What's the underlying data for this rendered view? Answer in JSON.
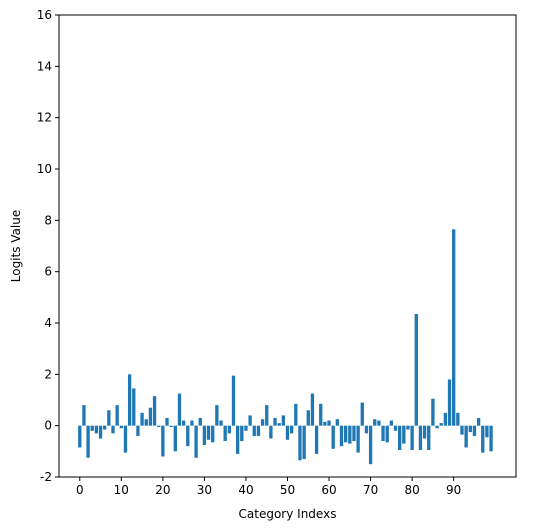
{
  "chart_data": {
    "type": "bar",
    "title": "",
    "xlabel": "Category Indexs",
    "ylabel": "Logits Value",
    "xlim": [
      -5,
      105
    ],
    "ylim": [
      -2,
      16
    ],
    "x_ticks": [
      0,
      10,
      20,
      30,
      40,
      50,
      60,
      70,
      80,
      90
    ],
    "y_ticks": [
      -2,
      0,
      2,
      4,
      6,
      8,
      10,
      12,
      14,
      16
    ],
    "grid": false,
    "bar_color": "#1f77b4",
    "x": [
      0,
      1,
      2,
      3,
      4,
      5,
      6,
      7,
      8,
      9,
      10,
      11,
      12,
      13,
      14,
      15,
      16,
      17,
      18,
      19,
      20,
      21,
      22,
      23,
      24,
      25,
      26,
      27,
      28,
      29,
      30,
      31,
      32,
      33,
      34,
      35,
      36,
      37,
      38,
      39,
      40,
      41,
      42,
      43,
      44,
      45,
      46,
      47,
      48,
      49,
      50,
      51,
      52,
      53,
      54,
      55,
      56,
      57,
      58,
      59,
      60,
      61,
      62,
      63,
      64,
      65,
      66,
      67,
      68,
      69,
      70,
      71,
      72,
      73,
      74,
      75,
      76,
      77,
      78,
      79,
      80,
      81,
      82,
      83,
      84,
      85,
      86,
      87,
      88,
      89,
      90,
      91,
      92,
      93,
      94,
      95,
      96,
      97,
      98,
      99
    ],
    "values": [
      -0.85,
      0.8,
      -1.25,
      -0.2,
      -0.3,
      -0.5,
      -0.15,
      0.6,
      -0.3,
      0.8,
      -0.1,
      -1.05,
      2.0,
      1.45,
      -0.4,
      0.5,
      0.25,
      0.7,
      1.15,
      -0.05,
      -1.2,
      0.3,
      -0.05,
      -1.0,
      1.25,
      0.2,
      -0.8,
      0.2,
      -1.25,
      0.3,
      -0.75,
      -0.55,
      -0.65,
      0.8,
      0.2,
      -0.6,
      -0.3,
      1.95,
      -1.1,
      -0.6,
      -0.2,
      0.4,
      -0.4,
      -0.4,
      0.25,
      0.8,
      -0.5,
      0.3,
      0.1,
      0.4,
      -0.55,
      -0.3,
      0.85,
      -1.35,
      -1.3,
      0.6,
      1.25,
      -1.1,
      0.85,
      0.15,
      0.2,
      -0.9,
      0.25,
      -0.8,
      -0.65,
      -0.7,
      -0.6,
      -1.05,
      0.9,
      -0.3,
      -1.5,
      0.25,
      0.2,
      -0.6,
      -0.65,
      0.2,
      -0.2,
      -0.95,
      -0.7,
      -0.15,
      -0.95,
      4.35,
      -0.95,
      -0.5,
      -0.95,
      1.05,
      -0.1,
      0.1,
      0.5,
      1.8,
      7.65,
      0.5,
      -0.35,
      -0.85,
      -0.25,
      -0.4,
      0.3,
      -1.05,
      -0.45,
      -1.0
    ]
  }
}
